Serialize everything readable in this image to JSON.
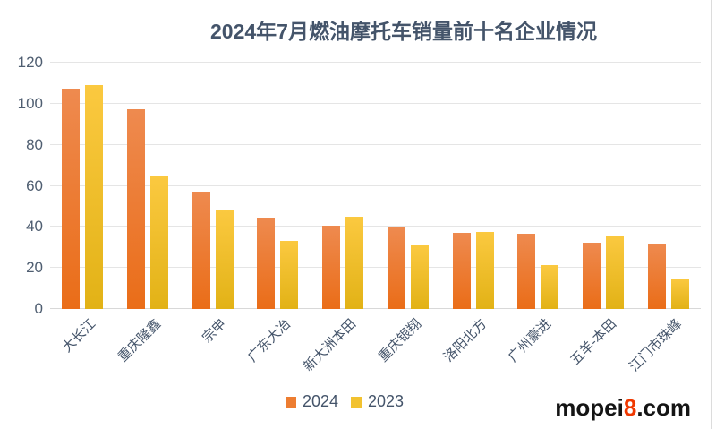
{
  "title": "2024年7月燃油摩托车销量前十名企业情况",
  "colors": {
    "title_text": "#44546A",
    "axis_text": "#4F5E71",
    "gridline": "#e5e5e5",
    "orange_top": "#EE8A4F",
    "orange_bottom": "#EA6D18",
    "yellow_top": "#FBC940",
    "yellow_bottom": "#E2B216",
    "legend_orange": "#ED7D31",
    "legend_yellow": "#F2C230",
    "watermark_highlight": "#F03800"
  },
  "legend": {
    "items": [
      {
        "label": "2024",
        "color": "#ED7D31"
      },
      {
        "label": "2023",
        "color": "#F2C230"
      }
    ]
  },
  "watermark": {
    "prefix": "mopei",
    "highlight": "8",
    "suffix": ".com",
    "highlight_color": "#F03800"
  },
  "chart_data": {
    "type": "bar",
    "title": "2024年7月燃油摩托车销量前十名企业情况",
    "xlabel": "",
    "ylabel": "",
    "ylim": [
      0,
      120
    ],
    "ytick_step": 20,
    "yticks": [
      0,
      20,
      40,
      60,
      80,
      100,
      120
    ],
    "grid": true,
    "legend_position": "bottom",
    "categories": [
      "大长江",
      "重庆隆鑫",
      "宗申",
      "广东大冶",
      "新大洲本田",
      "重庆银翔",
      "洛阳北方",
      "广州豪进",
      "五羊-本田",
      "江门市珠峰"
    ],
    "series": [
      {
        "name": "2024",
        "values": [
          107.5,
          97.5,
          57,
          44.5,
          40.5,
          39.5,
          37,
          36.5,
          32.5,
          32
        ],
        "color_top": "#EE8A4F",
        "color_bottom": "#EA6D18"
      },
      {
        "name": "2023",
        "values": [
          109,
          64.5,
          48,
          33,
          45,
          31,
          37.5,
          21.5,
          36,
          15
        ],
        "color_top": "#FBC940",
        "color_bottom": "#E2B216"
      }
    ]
  }
}
